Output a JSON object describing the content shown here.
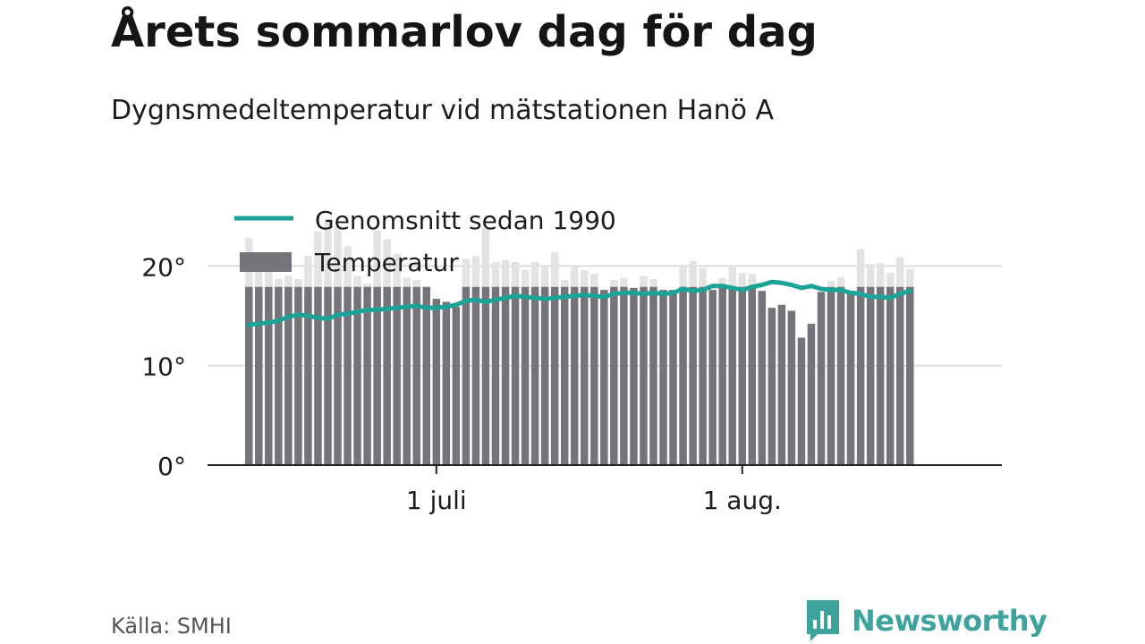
{
  "title": "Årets sommarlov dag för dag",
  "subtitle": "Dygnsmedeltemperatur vid mätstationen Hanö A",
  "source": "Källa: SMHI",
  "logo_text": "Newsworthy",
  "colors": {
    "bar": "#76747a",
    "bar_faded": "#e3e3e3",
    "line": "#1aa396",
    "grid": "#dddddd",
    "axis": "#222222",
    "logo": "#3ea39c"
  },
  "chart_data": {
    "type": "bar",
    "title": "Årets sommarlov dag för dag",
    "subtitle": "Dygnsmedeltemperatur vid mätstationen Hanö A",
    "x_start": "2018-06-12",
    "x_axis_ticks": [
      {
        "date": "2018-07-01",
        "label": "1 juli"
      },
      {
        "date": "2018-08-01",
        "label": "1 aug."
      }
    ],
    "y_axis": {
      "min": 0,
      "max": 23,
      "ticks": [
        0,
        10,
        20
      ],
      "tick_labels": [
        "0°",
        "10°",
        "20°"
      ]
    },
    "legend": [
      "Genomsnitt sedan 1990",
      "Temperatur"
    ],
    "legend_position": "top-left",
    "grid": true,
    "series": [
      {
        "name": "Temperatur",
        "kind": "bar",
        "values": [
          22.8,
          19.6,
          19.6,
          18.7,
          19.0,
          18.7,
          21.0,
          23.5,
          24.5,
          24.0,
          22.0,
          19.0,
          18.2,
          23.6,
          22.7,
          21.2,
          18.8,
          18.6,
          17.9,
          16.7,
          16.4,
          15.9,
          20.7,
          21.0,
          23.8,
          20.4,
          20.6,
          20.4,
          19.6,
          20.4,
          19.9,
          21.4,
          18.6,
          20.0,
          19.6,
          19.2,
          17.6,
          18.6,
          18.8,
          17.8,
          19.0,
          18.7,
          17.6,
          17.6,
          20.0,
          20.5,
          19.8,
          17.6,
          18.8,
          20.1,
          19.3,
          19.2,
          17.5,
          15.8,
          16.1,
          15.5,
          12.8,
          14.2,
          17.4,
          18.5,
          18.9,
          17.5,
          21.7,
          20.2,
          20.3,
          19.3,
          20.9,
          19.7
        ]
      },
      {
        "name": "Genomsnitt sedan 1990",
        "kind": "line",
        "values": [
          14.1,
          14.2,
          14.3,
          14.5,
          14.9,
          15.1,
          15.0,
          14.8,
          14.7,
          15.1,
          15.2,
          15.4,
          15.6,
          15.6,
          15.7,
          15.8,
          15.9,
          16.0,
          15.8,
          15.8,
          15.9,
          16.1,
          16.5,
          16.6,
          16.4,
          16.6,
          16.8,
          17.0,
          16.9,
          16.8,
          16.7,
          16.8,
          16.9,
          17.0,
          17.1,
          17.0,
          16.9,
          17.2,
          17.3,
          17.3,
          17.2,
          17.3,
          17.2,
          17.3,
          17.7,
          17.5,
          17.6,
          18.0,
          18.0,
          17.8,
          17.6,
          17.9,
          18.1,
          18.4,
          18.3,
          18.1,
          17.8,
          18.0,
          17.7,
          17.6,
          17.6,
          17.3,
          17.2,
          16.9,
          16.9,
          16.8,
          17.2,
          17.5
        ]
      }
    ]
  }
}
